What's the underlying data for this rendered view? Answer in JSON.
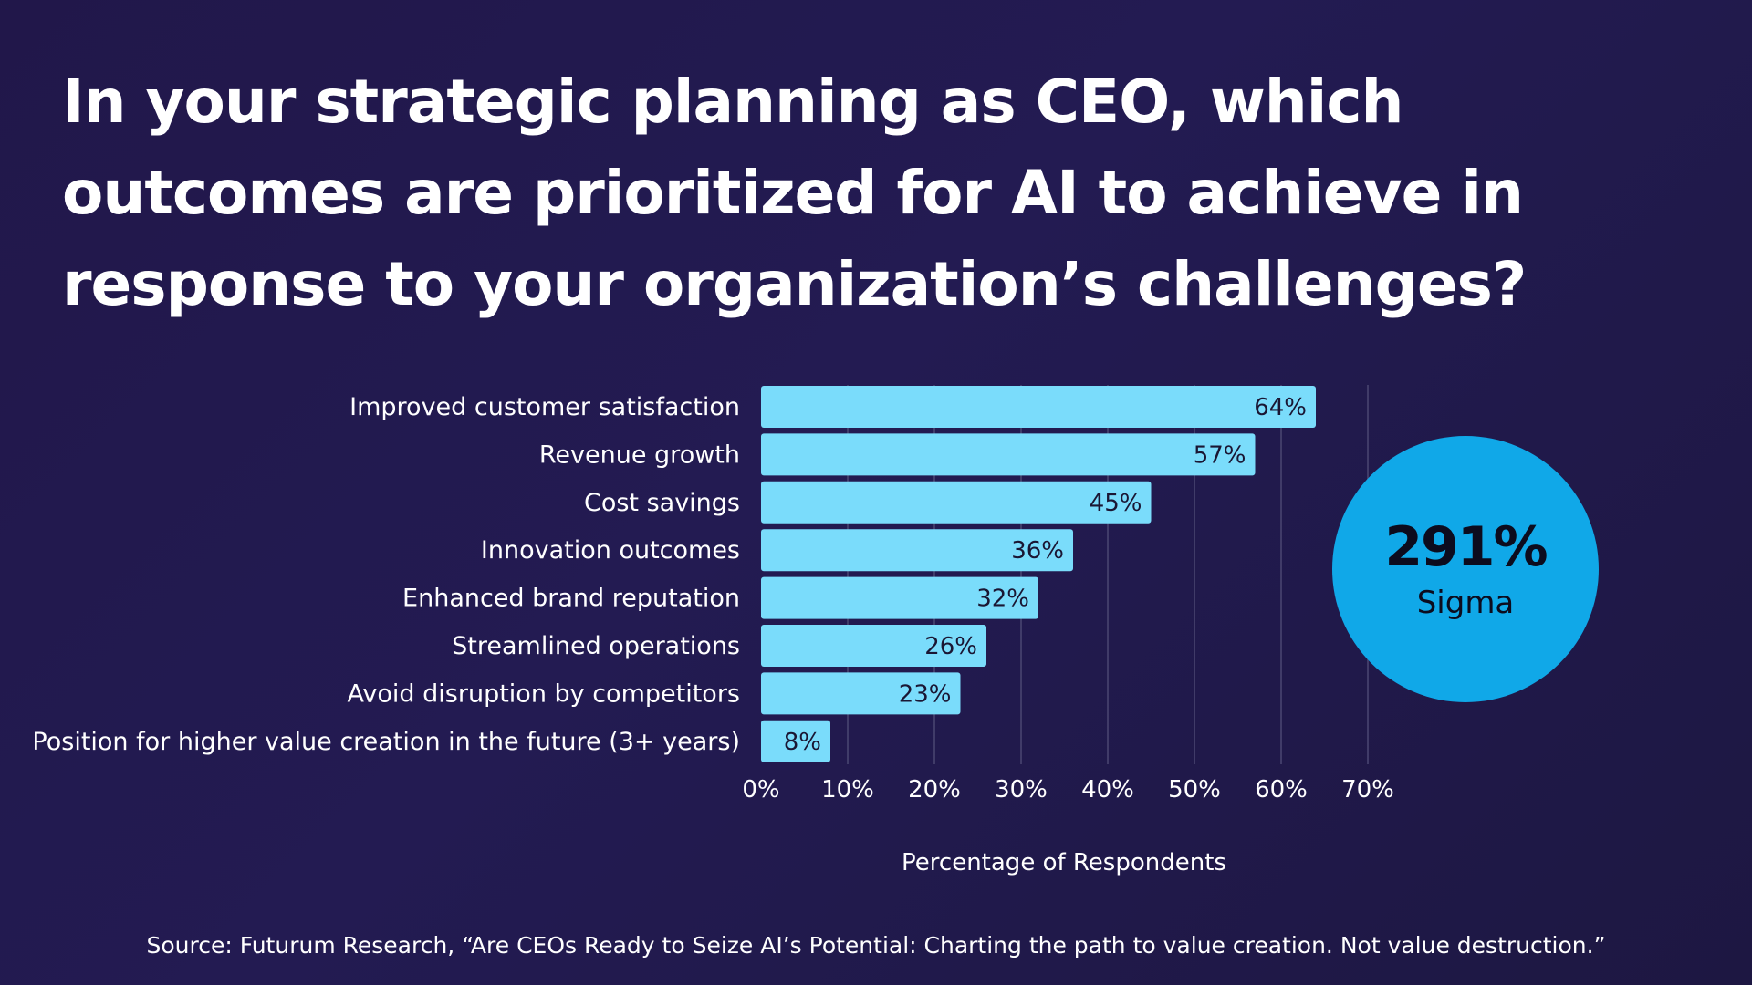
{
  "title": "In your strategic planning as CEO, which outcomes are prioritized for AI to achieve in response to your organization’s challenges?",
  "chart_data": {
    "type": "bar",
    "orientation": "horizontal",
    "categories": [
      "Improved customer satisfaction",
      "Revenue growth",
      "Cost savings",
      "Innovation outcomes",
      "Enhanced brand reputation",
      "Streamlined operations",
      "Avoid disruption by competitors",
      "Position for higher value creation in the future (3+ years)"
    ],
    "values": [
      64,
      57,
      45,
      36,
      32,
      26,
      23,
      8
    ],
    "value_labels": [
      "64%",
      "57%",
      "45%",
      "36%",
      "32%",
      "26%",
      "23%",
      "8%"
    ],
    "xticks": [
      0,
      10,
      20,
      30,
      40,
      50,
      60,
      70
    ],
    "xtick_labels": [
      "0%",
      "10%",
      "20%",
      "30%",
      "40%",
      "50%",
      "60%",
      "70%"
    ],
    "xlim": [
      0,
      70
    ],
    "xlabel": "Percentage of Respondents",
    "ylabel": "",
    "grid": true,
    "bar_color": "#7adcfb"
  },
  "highlight": {
    "value": "291%",
    "label": "Sigma",
    "color": "#10a8e8"
  },
  "source": "Source: Futurum Research, “Are CEOs Ready to Seize AI’s Potential: Charting the path to value creation. Not value destruction.”"
}
